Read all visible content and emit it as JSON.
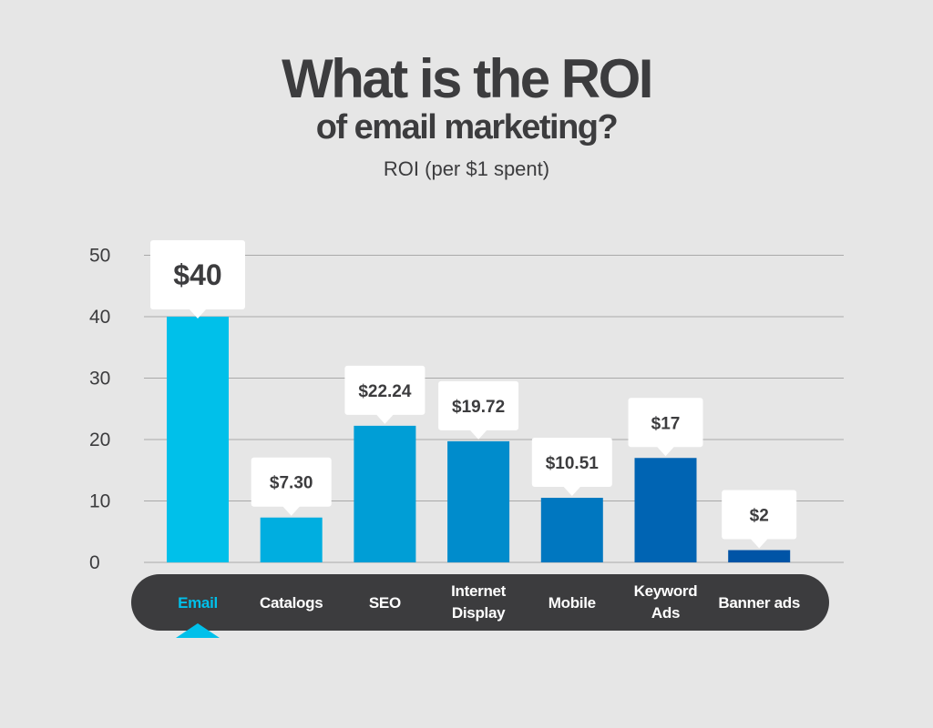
{
  "header": {
    "title_line1": "What is the ROI",
    "title_line2": "of email marketing?",
    "subtitle": "ROI (per $1 spent)"
  },
  "colors": {
    "background": "#e6e6e6",
    "grid": "#a9a9a9",
    "axis_text": "#3c3c3e",
    "label_bar": "#3c3c3e",
    "highlight_label": "#00c0ea",
    "callout_bg": "#ffffff"
  },
  "chart_data": {
    "type": "bar",
    "title": "What is the ROI of email marketing?",
    "subtitle": "ROI (per $1 spent)",
    "ylim": [
      0,
      50
    ],
    "yticks": [
      0,
      10,
      20,
      30,
      40,
      50
    ],
    "grid": true,
    "categories": [
      [
        "Email"
      ],
      [
        "Catalogs"
      ],
      [
        "SEO"
      ],
      [
        "Internet",
        "Display"
      ],
      [
        "Mobile"
      ],
      [
        "Keyword",
        "Ads"
      ],
      [
        "Banner ads"
      ]
    ],
    "values": [
      40,
      7.3,
      22.24,
      19.72,
      10.51,
      17,
      2
    ],
    "value_labels": [
      "$40",
      "$7.30",
      "$22.24",
      "$19.72",
      "$10.51",
      "$17",
      "$2"
    ],
    "bar_colors": [
      "#00c0ea",
      "#00aee0",
      "#009ed6",
      "#008ccc",
      "#0077c0",
      "#0064b3",
      "#0054a6"
    ],
    "highlighted_category": "Email"
  }
}
